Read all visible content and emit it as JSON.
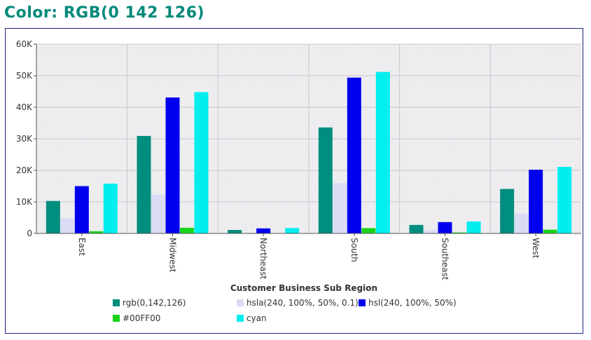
{
  "page": {
    "title": "Color: RGB(0 142 126)"
  },
  "chart_data": {
    "type": "bar",
    "title": "",
    "xlabel": "Customer Business Sub Region",
    "ylabel": "",
    "ylim": [
      0,
      60000
    ],
    "yticks": [
      0,
      10000,
      20000,
      30000,
      40000,
      50000,
      60000
    ],
    "ytick_labels": [
      "0",
      "10K",
      "20K",
      "30K",
      "40K",
      "50K",
      "60K"
    ],
    "grid": true,
    "legend_position": "bottom",
    "categories": [
      "East",
      "Midwest",
      "Northeast",
      "South",
      "Southeast",
      "West"
    ],
    "series": [
      {
        "name": "rgb(0,142,126)",
        "color": "#008e7e",
        "values": [
          10300,
          30900,
          1100,
          33600,
          2700,
          14100
        ]
      },
      {
        "name": "hsla(240, 100%, 50%, 0.1)",
        "color": "#dadcf4",
        "values": [
          4800,
          12300,
          200,
          16000,
          1000,
          6300
        ]
      },
      {
        "name": "hsl(240, 100%, 50%)",
        "color": "#0000ee",
        "values": [
          15000,
          43100,
          1600,
          49400,
          3600,
          20200
        ]
      },
      {
        "name": "#00FF00",
        "color": "#19d419",
        "values": [
          700,
          1800,
          100,
          1700,
          300,
          1200
        ]
      },
      {
        "name": "cyan",
        "color": "#00eeee",
        "values": [
          15800,
          44800,
          1700,
          51200,
          3800,
          21100
        ]
      }
    ]
  }
}
